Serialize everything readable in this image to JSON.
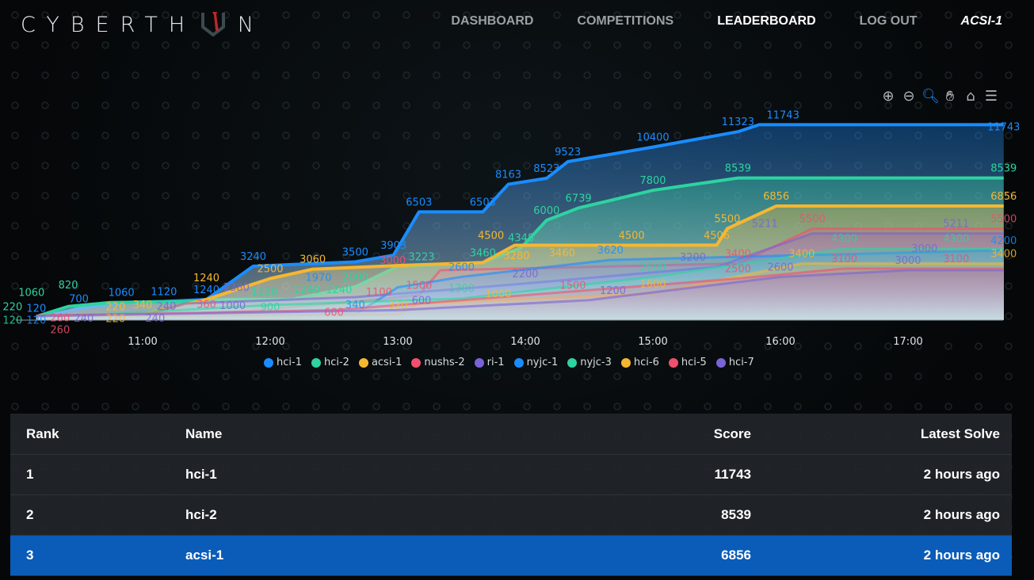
{
  "nav": {
    "logo": "CYBERTH N",
    "items": [
      {
        "label": "DASHBOARD",
        "active": false
      },
      {
        "label": "COMPETITIONS",
        "active": false
      },
      {
        "label": "LEADERBOARD",
        "active": true
      },
      {
        "label": "LOG OUT",
        "active": false
      }
    ],
    "user": "ACSI-1"
  },
  "toolbar": [
    "zoom-in-icon",
    "zoom-out-icon",
    "selection-zoom-icon",
    "pan-hand-icon",
    "home-reset-icon",
    "menu-icon"
  ],
  "chart_data": {
    "type": "area",
    "xlabel": "",
    "ylabel": "",
    "x_ticks": [
      "11:00",
      "12:00",
      "13:00",
      "14:00",
      "15:00",
      "16:00",
      "17:00"
    ],
    "xlim": [
      "10:08",
      "17:45"
    ],
    "ylim": [
      0,
      12000
    ],
    "grid": false,
    "legend": "bottom",
    "series": [
      {
        "name": "hci-1",
        "color": "#1a8cff",
        "points": [
          [
            "10:10",
            120
          ],
          [
            "10:30",
            700
          ],
          [
            "10:50",
            1060
          ],
          [
            "11:10",
            1120
          ],
          [
            "11:30",
            1240
          ],
          [
            "11:52",
            3240
          ],
          [
            "12:40",
            3500
          ],
          [
            "12:58",
            3903
          ],
          [
            "13:10",
            6503
          ],
          [
            "13:40",
            6503
          ],
          [
            "13:52",
            8163
          ],
          [
            "14:10",
            8523
          ],
          [
            "14:20",
            9523
          ],
          [
            "15:00",
            10400
          ],
          [
            "15:40",
            11323
          ],
          [
            "15:50",
            11743
          ],
          [
            "17:45",
            11743
          ]
        ]
      },
      {
        "name": "hci-2",
        "color": "#2ed3a0",
        "points": [
          [
            "10:10",
            220
          ],
          [
            "10:25",
            820
          ],
          [
            "10:45",
            1060
          ],
          [
            "11:20",
            1120
          ],
          [
            "11:40",
            1240
          ],
          [
            "12:10",
            1240
          ],
          [
            "12:40",
            2000
          ],
          [
            "13:00",
            3223
          ],
          [
            "13:40",
            3460
          ],
          [
            "13:58",
            4348
          ],
          [
            "14:10",
            6000
          ],
          [
            "14:25",
            6739
          ],
          [
            "15:00",
            7800
          ],
          [
            "15:40",
            8539
          ],
          [
            "17:45",
            8539
          ]
        ]
      },
      {
        "name": "acsi-1",
        "color": "#f5b731",
        "points": [
          [
            "10:10",
            220
          ],
          [
            "11:00",
            340
          ],
          [
            "11:30",
            1240
          ],
          [
            "12:00",
            2500
          ],
          [
            "12:20",
            3060
          ],
          [
            "13:00",
            3280
          ],
          [
            "13:40",
            3460
          ],
          [
            "13:55",
            4500
          ],
          [
            "14:50",
            4500
          ],
          [
            "15:30",
            4506
          ],
          [
            "15:35",
            5500
          ],
          [
            "15:58",
            6856
          ],
          [
            "17:45",
            6856
          ]
        ]
      },
      {
        "name": "nushs-2",
        "color": "#f0506e",
        "points": [
          [
            "10:10",
            260
          ],
          [
            "11:30",
            360
          ],
          [
            "12:40",
            1100
          ],
          [
            "13:10",
            1500
          ],
          [
            "13:20",
            3000
          ],
          [
            "15:40",
            3400
          ],
          [
            "16:15",
            5500
          ],
          [
            "17:45",
            5500
          ]
        ]
      },
      {
        "name": "ri-1",
        "color": "#7a63d6",
        "points": [
          [
            "10:10",
            240
          ],
          [
            "11:00",
            240
          ],
          [
            "11:20",
            1000
          ],
          [
            "12:40",
            1380
          ],
          [
            "14:00",
            2200
          ],
          [
            "15:30",
            3200
          ],
          [
            "16:15",
            5211
          ],
          [
            "17:45",
            5211
          ]
        ]
      },
      {
        "name": "nyjc-1",
        "color": "#1a8cff",
        "points": [
          [
            "10:10",
            120
          ],
          [
            "12:40",
            340
          ],
          [
            "13:00",
            1970
          ],
          [
            "13:30",
            2600
          ],
          [
            "14:40",
            3620
          ],
          [
            "17:45",
            4200
          ]
        ]
      },
      {
        "name": "nyjc-3",
        "color": "#2ed3a0",
        "points": [
          [
            "10:10",
            120
          ],
          [
            "12:00",
            900
          ],
          [
            "13:30",
            1300
          ],
          [
            "15:00",
            2600
          ],
          [
            "16:30",
            4300
          ],
          [
            "17:45",
            4300
          ]
        ]
      },
      {
        "name": "hci-6",
        "color": "#f5b731",
        "points": [
          [
            "10:10",
            220
          ],
          [
            "13:00",
            320
          ],
          [
            "13:10",
            1000
          ],
          [
            "15:00",
            1600
          ],
          [
            "16:10",
            3400
          ],
          [
            "17:45",
            3400
          ]
        ]
      },
      {
        "name": "hci-5",
        "color": "#f0506e",
        "points": [
          [
            "10:10",
            260
          ],
          [
            "12:30",
            600
          ],
          [
            "14:00",
            1500
          ],
          [
            "15:40",
            2500
          ],
          [
            "16:30",
            3100
          ],
          [
            "17:45",
            3100
          ]
        ]
      },
      {
        "name": "hci-7",
        "color": "#7a63d6",
        "points": [
          [
            "10:10",
            240
          ],
          [
            "13:00",
            600
          ],
          [
            "14:30",
            1200
          ],
          [
            "16:00",
            2600
          ],
          [
            "17:00",
            3000
          ],
          [
            "17:45",
            3000
          ]
        ]
      }
    ]
  },
  "table": {
    "headers": [
      "Rank",
      "Name",
      "Score",
      "Latest Solve"
    ],
    "rows": [
      {
        "rank": "1",
        "name": "hci-1",
        "score": "11743",
        "latest": "2 hours ago",
        "selected": false
      },
      {
        "rank": "2",
        "name": "hci-2",
        "score": "8539",
        "latest": "2 hours ago",
        "selected": false
      },
      {
        "rank": "3",
        "name": "acsi-1",
        "score": "6856",
        "latest": "2 hours ago",
        "selected": true
      }
    ]
  }
}
